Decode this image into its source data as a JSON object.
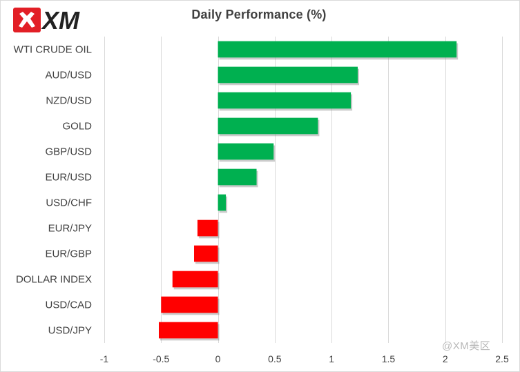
{
  "logo": {
    "text": "XM"
  },
  "watermark": "@XM美区",
  "colors": {
    "positive": "#00b050",
    "negative": "#ff0000",
    "grid": "#d9d9d9",
    "logo_red": "#e21f26"
  },
  "chart_data": {
    "type": "bar",
    "orientation": "horizontal",
    "title": "Daily Performance (%)",
    "xlabel": "",
    "ylabel": "",
    "categories": [
      "WTI CRUDE OIL",
      "AUD/USD",
      "NZD/USD",
      "GOLD",
      "GBP/USD",
      "EUR/USD",
      "USD/CHF",
      "EUR/JPY",
      "EUR/GBP",
      "DOLLAR INDEX",
      "USD/CAD",
      "USD/JPY"
    ],
    "values": [
      2.1,
      1.23,
      1.17,
      0.88,
      0.49,
      0.34,
      0.07,
      -0.18,
      -0.21,
      -0.4,
      -0.5,
      -0.52
    ],
    "xlim": [
      -1,
      2.5
    ],
    "xticks": [
      "-1",
      "-0.5",
      "0",
      "0.5",
      "1",
      "1.5",
      "2",
      "2.5"
    ],
    "xtick_values": [
      -1,
      -0.5,
      0,
      0.5,
      1,
      1.5,
      2,
      2.5
    ],
    "grid": true,
    "legend": "none"
  }
}
